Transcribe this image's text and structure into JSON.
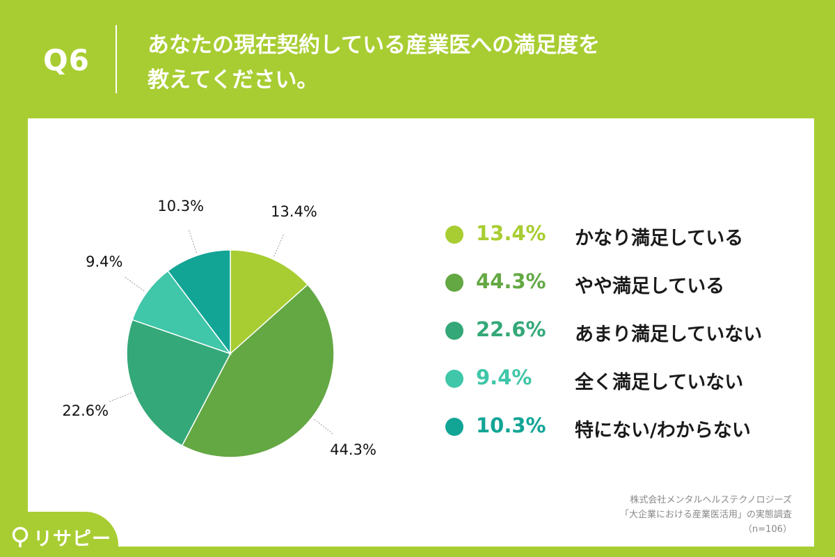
{
  "header": {
    "question_number": "Q6",
    "question_line1": "あなたの現在契約している産業医への満足度を",
    "question_line2": "教えてください。"
  },
  "chart_data": {
    "type": "pie",
    "title": "",
    "slices": [
      {
        "label": "かなり満足している",
        "value": 13.4,
        "value_label": "13.4%",
        "color": "#a8cd32"
      },
      {
        "label": "やや満足している",
        "value": 44.3,
        "value_label": "44.3%",
        "color": "#64a844"
      },
      {
        "label": "あまり満足していない",
        "value": 22.6,
        "value_label": "22.6%",
        "color": "#34a878"
      },
      {
        "label": "全く満足していない",
        "value": 9.4,
        "value_label": "9.4%",
        "color": "#40c6a8"
      },
      {
        "label": "特にない/わからない",
        "value": 10.3,
        "value_label": "10.3%",
        "color": "#12a596"
      }
    ],
    "legend_position": "right"
  },
  "legend": {
    "items": [
      {
        "pct": "13.4%",
        "label": "かなり満足している",
        "color": "#a8cd32"
      },
      {
        "pct": "44.3%",
        "label": "やや満足している",
        "color": "#64a844"
      },
      {
        "pct": "22.6%",
        "label": "あまり満足していない",
        "color": "#34a878"
      },
      {
        "pct": "9.4%",
        "label": "全く満足していない",
        "color": "#40c6a8"
      },
      {
        "pct": "10.3%",
        "label": "特にない/わからない",
        "color": "#12a596"
      }
    ]
  },
  "credit": {
    "line1": "株式会社メンタルヘルステクノロジーズ",
    "line2": "「大企業における産業医活用」の実態調査",
    "line3": "（n=106）"
  },
  "logo": {
    "text": "リサピー",
    "icon": "pin-icon"
  },
  "colors": {
    "background": "#a8cd32",
    "panel": "#ffffff"
  }
}
